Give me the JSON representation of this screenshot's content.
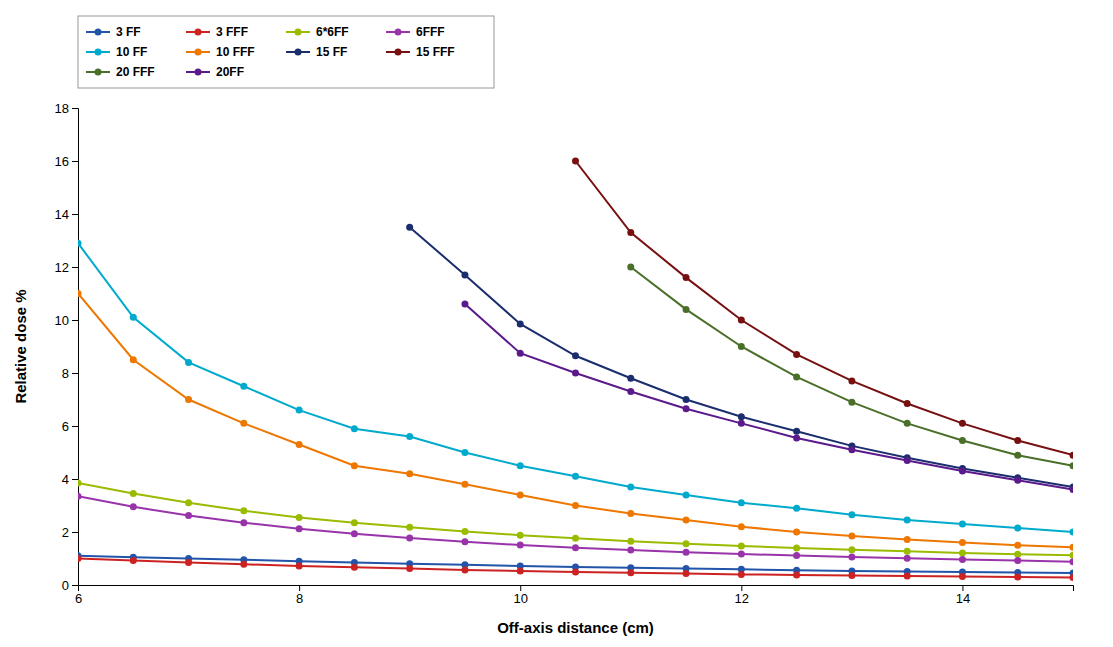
{
  "chart_data": {
    "type": "line",
    "xlabel": "Off-axis distance (cm)",
    "ylabel": "Relative dose %",
    "x": [
      6,
      6.5,
      7,
      7.5,
      8,
      8.5,
      9,
      9.5,
      10,
      10.5,
      11,
      11.5,
      12,
      12.5,
      13,
      13.5,
      14,
      14.5,
      15
    ],
    "series": [
      {
        "name": "3 FF",
        "color": "#2255aa",
        "values": [
          1.1,
          1.05,
          1.0,
          0.95,
          0.9,
          0.85,
          0.8,
          0.76,
          0.72,
          0.68,
          0.65,
          0.62,
          0.59,
          0.56,
          0.53,
          0.51,
          0.49,
          0.47,
          0.45
        ]
      },
      {
        "name": "3 FFF",
        "color": "#cc2222",
        "values": [
          1.0,
          0.92,
          0.85,
          0.78,
          0.72,
          0.67,
          0.62,
          0.57,
          0.53,
          0.49,
          0.46,
          0.43,
          0.4,
          0.38,
          0.36,
          0.34,
          0.32,
          0.3,
          0.28
        ]
      },
      {
        "name": "6*6FF",
        "color": "#99bb00",
        "values": [
          3.85,
          3.45,
          3.1,
          2.8,
          2.55,
          2.35,
          2.18,
          2.02,
          1.88,
          1.76,
          1.65,
          1.56,
          1.47,
          1.4,
          1.33,
          1.27,
          1.21,
          1.16,
          1.12
        ]
      },
      {
        "name": "6FFF",
        "color": "#9933aa",
        "values": [
          3.35,
          2.95,
          2.62,
          2.35,
          2.12,
          1.93,
          1.77,
          1.63,
          1.51,
          1.41,
          1.32,
          1.24,
          1.17,
          1.11,
          1.06,
          1.01,
          0.96,
          0.92,
          0.88
        ]
      },
      {
        "name": "10 FF",
        "color": "#00aacc",
        "values": [
          12.9,
          10.1,
          8.4,
          7.5,
          6.6,
          5.9,
          5.6,
          5.0,
          4.5,
          4.1,
          3.7,
          3.4,
          3.1,
          2.9,
          2.65,
          2.45,
          2.3,
          2.15,
          2.0
        ]
      },
      {
        "name": "10 FFF",
        "color": "#ee7700",
        "values": [
          11.0,
          8.5,
          7.0,
          6.1,
          5.3,
          4.5,
          4.2,
          3.8,
          3.4,
          3.0,
          2.7,
          2.45,
          2.2,
          2.0,
          1.85,
          1.72,
          1.6,
          1.5,
          1.42
        ]
      },
      {
        "name": "15 FF",
        "color": "#1a2e6e",
        "values": [
          null,
          null,
          null,
          null,
          null,
          null,
          13.5,
          11.7,
          9.85,
          8.65,
          7.8,
          7.0,
          6.35,
          5.8,
          5.25,
          4.8,
          4.4,
          4.05,
          3.7
        ]
      },
      {
        "name": "15 FFF",
        "color": "#771111",
        "values": [
          null,
          null,
          null,
          null,
          null,
          null,
          null,
          null,
          null,
          16.0,
          13.3,
          11.6,
          10.0,
          8.7,
          7.7,
          6.85,
          6.1,
          5.45,
          4.9
        ]
      },
      {
        "name": "20 FFF",
        "color": "#4a6f28",
        "values": [
          null,
          null,
          null,
          null,
          null,
          null,
          null,
          null,
          null,
          null,
          12.0,
          10.4,
          9.0,
          7.85,
          6.9,
          6.1,
          5.45,
          4.9,
          4.5
        ]
      },
      {
        "name": "20FF",
        "color": "#5b1a8b",
        "values": [
          null,
          null,
          null,
          null,
          null,
          null,
          null,
          10.6,
          8.75,
          8.0,
          7.3,
          6.65,
          6.1,
          5.55,
          5.1,
          4.7,
          4.3,
          3.95,
          3.6
        ]
      }
    ],
    "xlim": [
      6,
      15
    ],
    "ylim": [
      0,
      18
    ],
    "xticks": [
      6,
      8,
      10,
      12,
      14
    ],
    "yticks": [
      0,
      2,
      4,
      6,
      8,
      10,
      12,
      14,
      16,
      18
    ],
    "marker": "circle",
    "grid": false,
    "legend": "upper left"
  }
}
